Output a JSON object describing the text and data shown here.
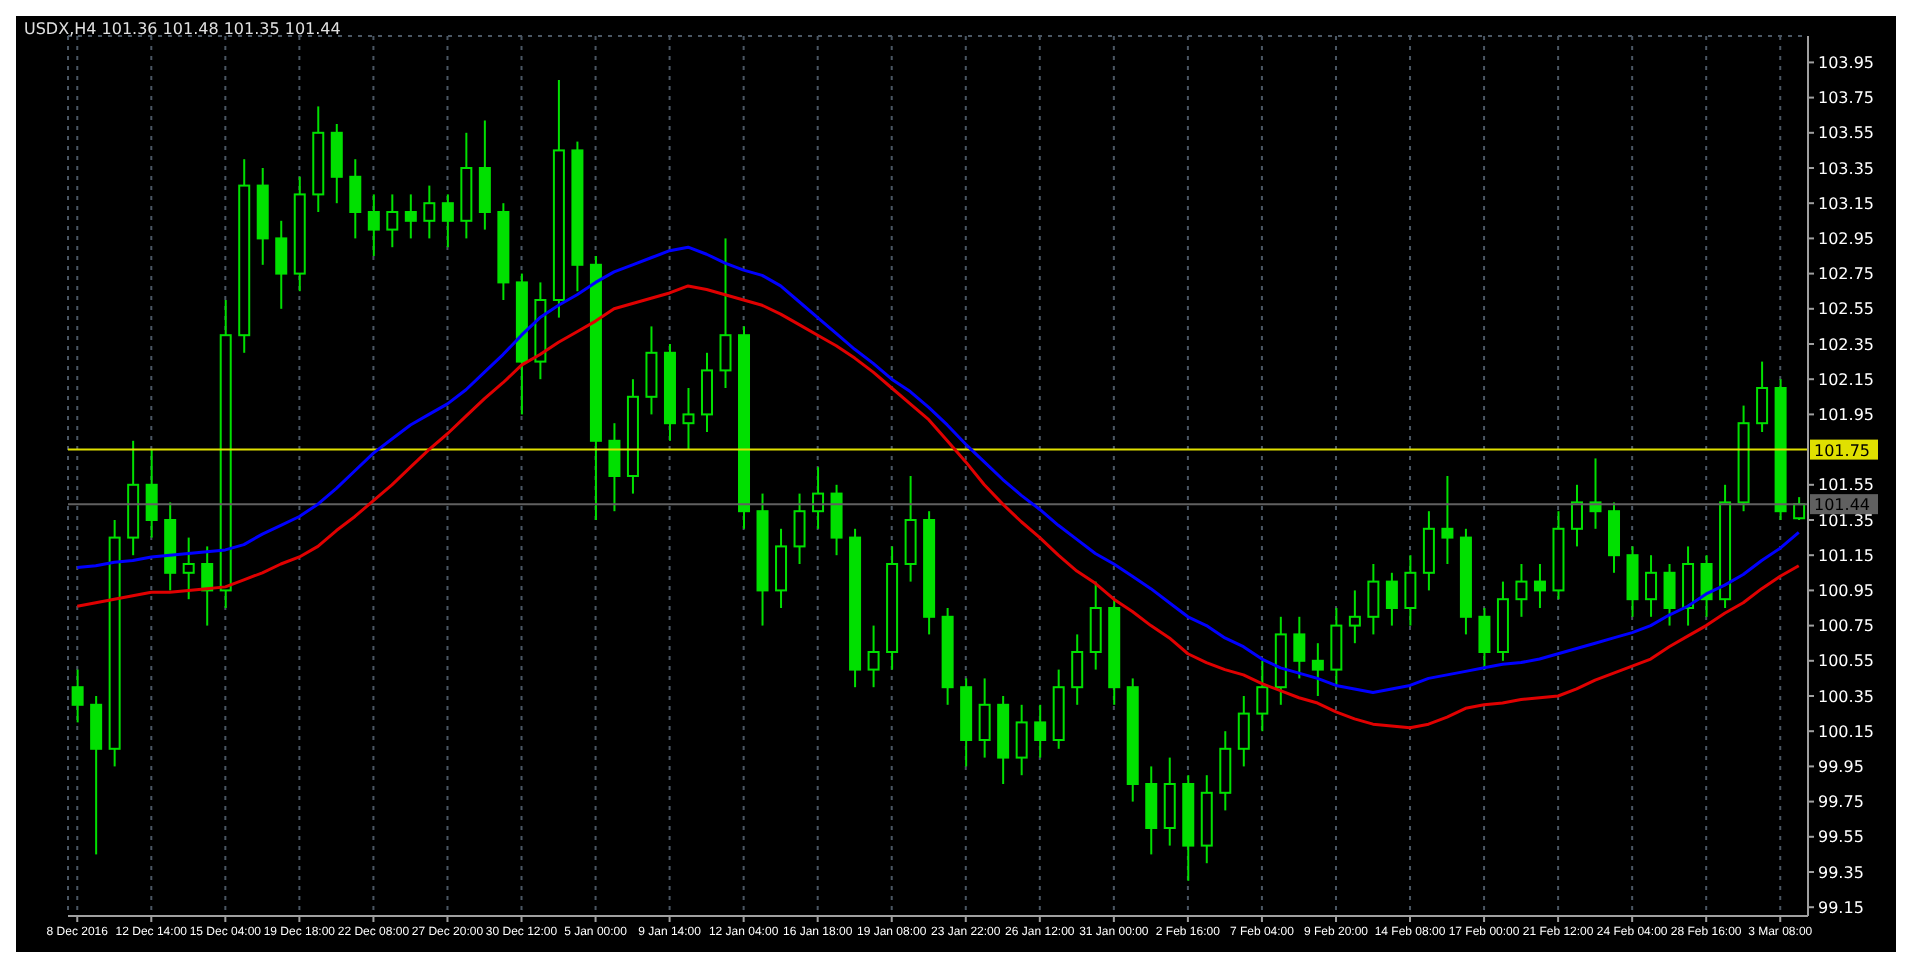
{
  "chart_data": {
    "type": "candlestick",
    "title": "USDX,H4 101.36 101.48 101.35 101.44",
    "categories": [
      "8 Dec 2016",
      null,
      null,
      null,
      "12 Dec 14:00",
      null,
      null,
      null,
      "15 Dec 04:00",
      null,
      null,
      null,
      "19 Dec 18:00",
      null,
      null,
      null,
      "22 Dec 08:00",
      null,
      null,
      null,
      "27 Dec 20:00",
      null,
      null,
      null,
      "30 Dec 12:00",
      null,
      null,
      null,
      "5 Jan 00:00",
      null,
      null,
      null,
      "9 Jan 14:00",
      null,
      null,
      null,
      "12 Jan 04:00",
      null,
      null,
      null,
      "16 Jan 18:00",
      null,
      null,
      null,
      "19 Jan 08:00",
      null,
      null,
      null,
      "23 Jan 22:00",
      null,
      null,
      null,
      "26 Jan 12:00",
      null,
      null,
      null,
      "31 Jan 00:00",
      null,
      null,
      null,
      "2 Feb 16:00",
      null,
      null,
      null,
      "7 Feb 04:00",
      null,
      null,
      null,
      "9 Feb 20:00",
      null,
      null,
      null,
      "14 Feb 08:00",
      null,
      null,
      null,
      "17 Feb 00:00",
      null,
      null,
      null,
      "21 Feb 12:00",
      null,
      null,
      null,
      "24 Feb 04:00",
      null,
      null,
      null,
      "28 Feb 16:00",
      null,
      null,
      null,
      "3 Mar 08:00",
      null
    ],
    "ohlc": [
      [
        100.4,
        100.5,
        100.2,
        100.3
      ],
      [
        100.3,
        100.35,
        99.45,
        100.05
      ],
      [
        100.05,
        101.35,
        99.95,
        101.25
      ],
      [
        101.25,
        101.8,
        101.15,
        101.55
      ],
      [
        101.55,
        101.75,
        101.25,
        101.35
      ],
      [
        101.35,
        101.45,
        100.95,
        101.05
      ],
      [
        101.05,
        101.25,
        100.9,
        101.1
      ],
      [
        101.1,
        101.2,
        100.75,
        100.95
      ],
      [
        100.95,
        102.6,
        100.85,
        102.4
      ],
      [
        102.4,
        103.4,
        102.3,
        103.25
      ],
      [
        103.25,
        103.35,
        102.8,
        102.95
      ],
      [
        102.95,
        103.05,
        102.55,
        102.75
      ],
      [
        102.75,
        103.3,
        102.65,
        103.2
      ],
      [
        103.2,
        103.7,
        103.1,
        103.55
      ],
      [
        103.55,
        103.6,
        103.15,
        103.3
      ],
      [
        103.3,
        103.4,
        102.95,
        103.1
      ],
      [
        103.1,
        103.2,
        102.85,
        103.0
      ],
      [
        103.0,
        103.2,
        102.9,
        103.1
      ],
      [
        103.1,
        103.2,
        102.95,
        103.05
      ],
      [
        103.05,
        103.25,
        102.95,
        103.15
      ],
      [
        103.15,
        103.2,
        102.9,
        103.05
      ],
      [
        103.05,
        103.55,
        102.95,
        103.35
      ],
      [
        103.35,
        103.62,
        103.0,
        103.1
      ],
      [
        103.1,
        103.15,
        102.6,
        102.7
      ],
      [
        102.7,
        102.75,
        101.95,
        102.25
      ],
      [
        102.25,
        102.7,
        102.15,
        102.6
      ],
      [
        102.6,
        103.85,
        102.5,
        103.45
      ],
      [
        103.45,
        103.5,
        102.65,
        102.8
      ],
      [
        102.8,
        102.85,
        101.35,
        101.8
      ],
      [
        101.8,
        101.9,
        101.4,
        101.6
      ],
      [
        101.6,
        102.15,
        101.5,
        102.05
      ],
      [
        102.05,
        102.45,
        101.95,
        102.3
      ],
      [
        102.3,
        102.35,
        101.8,
        101.9
      ],
      [
        101.9,
        102.1,
        101.75,
        101.95
      ],
      [
        101.95,
        102.3,
        101.85,
        102.2
      ],
      [
        102.2,
        102.95,
        102.1,
        102.4
      ],
      [
        102.4,
        102.45,
        101.3,
        101.4
      ],
      [
        101.4,
        101.5,
        100.75,
        100.95
      ],
      [
        100.95,
        101.3,
        100.85,
        101.2
      ],
      [
        101.2,
        101.5,
        101.1,
        101.4
      ],
      [
        101.4,
        101.65,
        101.3,
        101.5
      ],
      [
        101.5,
        101.55,
        101.15,
        101.25
      ],
      [
        101.25,
        101.3,
        100.4,
        100.5
      ],
      [
        100.5,
        100.75,
        100.4,
        100.6
      ],
      [
        100.6,
        101.2,
        100.5,
        101.1
      ],
      [
        101.1,
        101.6,
        101.0,
        101.35
      ],
      [
        101.35,
        101.4,
        100.7,
        100.8
      ],
      [
        100.8,
        100.85,
        100.3,
        100.4
      ],
      [
        100.4,
        100.45,
        99.95,
        100.1
      ],
      [
        100.1,
        100.45,
        100.0,
        100.3
      ],
      [
        100.3,
        100.35,
        99.85,
        100.0
      ],
      [
        100.0,
        100.3,
        99.9,
        100.2
      ],
      [
        100.2,
        100.3,
        100.0,
        100.1
      ],
      [
        100.1,
        100.5,
        100.05,
        100.4
      ],
      [
        100.4,
        100.7,
        100.3,
        100.6
      ],
      [
        100.6,
        101.0,
        100.5,
        100.85
      ],
      [
        100.85,
        100.9,
        100.3,
        100.4
      ],
      [
        100.4,
        100.45,
        99.75,
        99.85
      ],
      [
        99.85,
        99.95,
        99.45,
        99.6
      ],
      [
        99.6,
        100.0,
        99.5,
        99.85
      ],
      [
        99.85,
        99.9,
        99.3,
        99.5
      ],
      [
        99.5,
        99.9,
        99.4,
        99.8
      ],
      [
        99.8,
        100.15,
        99.7,
        100.05
      ],
      [
        100.05,
        100.35,
        99.95,
        100.25
      ],
      [
        100.25,
        100.55,
        100.15,
        100.4
      ],
      [
        100.4,
        100.8,
        100.3,
        100.7
      ],
      [
        100.7,
        100.8,
        100.45,
        100.55
      ],
      [
        100.55,
        100.65,
        100.35,
        100.5
      ],
      [
        100.5,
        100.85,
        100.4,
        100.75
      ],
      [
        100.75,
        100.95,
        100.65,
        100.8
      ],
      [
        100.8,
        101.1,
        100.7,
        101.0
      ],
      [
        101.0,
        101.05,
        100.75,
        100.85
      ],
      [
        100.85,
        101.15,
        100.75,
        101.05
      ],
      [
        101.05,
        101.4,
        100.95,
        101.3
      ],
      [
        101.3,
        101.6,
        101.1,
        101.25
      ],
      [
        101.25,
        101.3,
        100.7,
        100.8
      ],
      [
        100.8,
        100.85,
        100.5,
        100.6
      ],
      [
        100.6,
        101.0,
        100.55,
        100.9
      ],
      [
        100.9,
        101.1,
        100.8,
        101.0
      ],
      [
        101.0,
        101.1,
        100.85,
        100.95
      ],
      [
        100.95,
        101.4,
        100.9,
        101.3
      ],
      [
        101.3,
        101.55,
        101.2,
        101.45
      ],
      [
        101.45,
        101.7,
        101.3,
        101.4
      ],
      [
        101.4,
        101.45,
        101.05,
        101.15
      ],
      [
        101.15,
        101.2,
        100.8,
        100.9
      ],
      [
        100.9,
        101.15,
        100.8,
        101.05
      ],
      [
        101.05,
        101.1,
        100.75,
        100.85
      ],
      [
        100.85,
        101.2,
        100.75,
        101.1
      ],
      [
        101.1,
        101.15,
        100.8,
        100.9
      ],
      [
        100.9,
        101.55,
        100.85,
        101.45
      ],
      [
        101.45,
        102.0,
        101.4,
        101.9
      ],
      [
        101.9,
        102.25,
        101.85,
        102.1
      ],
      [
        102.1,
        102.15,
        101.35,
        101.4
      ],
      [
        101.36,
        101.48,
        101.35,
        101.44
      ]
    ],
    "color": "#00e000",
    "series": [
      {
        "type": "line",
        "color": "#0000ff",
        "values": [
          101.08,
          101.09,
          101.11,
          101.12,
          101.14,
          101.15,
          101.16,
          101.17,
          101.18,
          101.21,
          101.27,
          101.32,
          101.37,
          101.44,
          101.53,
          101.63,
          101.73,
          101.81,
          101.89,
          101.95,
          102.01,
          102.09,
          102.19,
          102.29,
          102.4,
          102.5,
          102.57,
          102.63,
          102.7,
          102.76,
          102.8,
          102.84,
          102.88,
          102.9,
          102.86,
          102.81,
          102.77,
          102.74,
          102.68,
          102.59,
          102.5,
          102.41,
          102.32,
          102.24,
          102.15,
          102.08,
          101.99,
          101.89,
          101.78,
          101.68,
          101.58,
          101.49,
          101.41,
          101.32,
          101.24,
          101.16,
          101.1,
          101.03,
          100.96,
          100.88,
          100.8,
          100.75,
          100.68,
          100.63,
          100.56,
          100.51,
          100.48,
          100.45,
          100.41,
          100.39,
          100.37,
          100.39,
          100.41,
          100.45,
          100.47,
          100.49,
          100.51,
          100.53,
          100.54,
          100.56,
          100.59,
          100.62,
          100.65,
          100.68,
          100.71,
          100.75,
          100.81,
          100.86,
          100.93,
          100.98,
          101.04,
          101.12,
          101.19,
          101.28
        ]
      },
      {
        "type": "line",
        "color": "#e00000",
        "values": [
          100.86,
          100.88,
          100.9,
          100.92,
          100.94,
          100.94,
          100.95,
          100.96,
          100.97,
          101.01,
          101.05,
          101.1,
          101.14,
          101.2,
          101.29,
          101.37,
          101.46,
          101.55,
          101.65,
          101.75,
          101.84,
          101.94,
          102.04,
          102.13,
          102.23,
          102.29,
          102.36,
          102.42,
          102.48,
          102.55,
          102.58,
          102.61,
          102.64,
          102.68,
          102.66,
          102.63,
          102.6,
          102.57,
          102.52,
          102.46,
          102.4,
          102.34,
          102.27,
          102.19,
          102.1,
          102.01,
          101.92,
          101.8,
          101.68,
          101.55,
          101.44,
          101.34,
          101.25,
          101.15,
          101.06,
          100.99,
          100.9,
          100.83,
          100.75,
          100.68,
          100.59,
          100.54,
          100.5,
          100.47,
          100.42,
          100.38,
          100.34,
          100.31,
          100.26,
          100.22,
          100.19,
          100.18,
          100.17,
          100.19,
          100.23,
          100.28,
          100.3,
          100.31,
          100.33,
          100.34,
          100.35,
          100.39,
          100.44,
          100.48,
          100.52,
          100.56,
          100.63,
          100.69,
          100.75,
          100.82,
          100.88,
          100.96,
          101.03,
          101.09
        ]
      }
    ],
    "ylim": [
      99.1,
      104.1
    ],
    "yticks": [
      99.15,
      99.35,
      99.55,
      99.75,
      99.95,
      100.15,
      100.35,
      100.55,
      100.75,
      100.95,
      101.15,
      101.35,
      101.55,
      101.95,
      102.15,
      102.35,
      102.55,
      102.75,
      102.95,
      103.15,
      103.35,
      103.55,
      103.75,
      103.95
    ],
    "grid": true,
    "ref_lines": [
      {
        "axis": "y",
        "value": 101.75,
        "label": "101.75",
        "color": "#e0e000"
      },
      {
        "axis": "y",
        "value": 101.44,
        "label": "101.44",
        "color": "#606060"
      }
    ]
  }
}
